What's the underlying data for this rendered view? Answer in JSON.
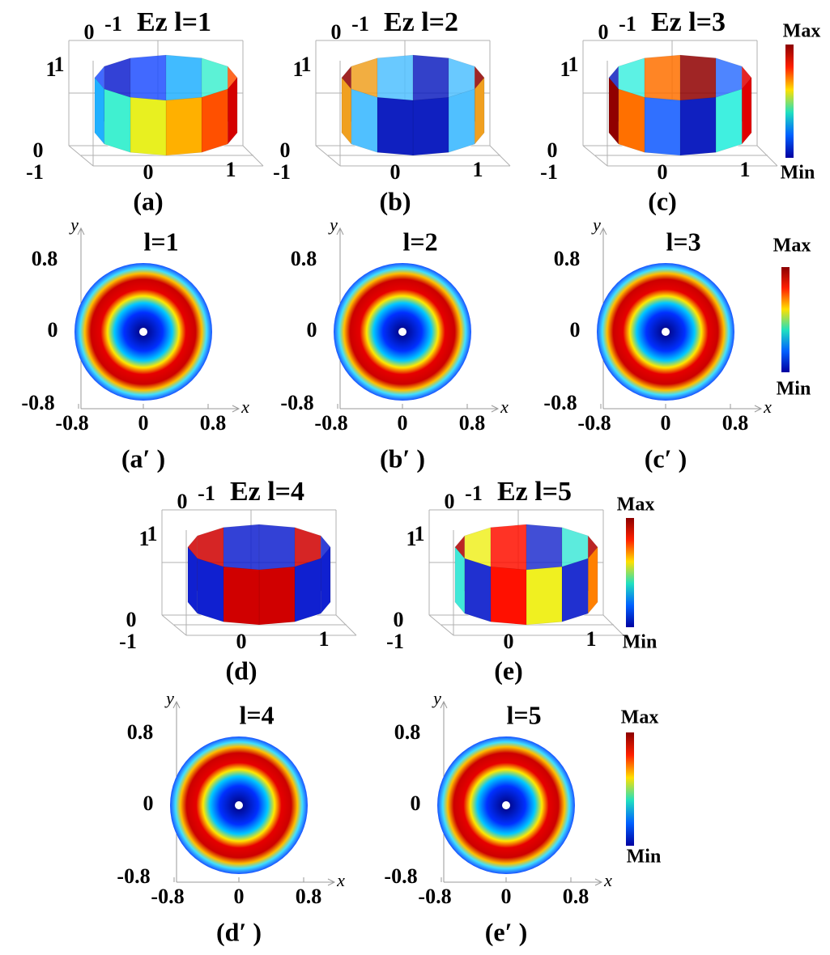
{
  "panels_3d": [
    {
      "title": "Ez  l=1",
      "label": "(a)",
      "x_ticks": [
        "-1",
        "0",
        "1"
      ],
      "y_ticks": [
        "0",
        "-1"
      ],
      "z_ticks": [
        "1",
        "1",
        "0"
      ]
    },
    {
      "title": "Ez  l=2",
      "label": "(b)",
      "x_ticks": [
        "-1",
        "0",
        "1"
      ],
      "y_ticks": [
        "0",
        "-1"
      ],
      "z_ticks": [
        "1",
        "1",
        "0"
      ]
    },
    {
      "title": "Ez  l=3",
      "label": "(c)",
      "x_ticks": [
        "-1",
        "0",
        "1"
      ],
      "y_ticks": [
        "0",
        "-1"
      ],
      "z_ticks": [
        "1",
        "1",
        "0"
      ]
    },
    {
      "title": "Ez  l=4",
      "label": "(d)",
      "x_ticks": [
        "-1",
        "0",
        "1"
      ],
      "y_ticks": [
        "0",
        "-1"
      ],
      "z_ticks": [
        "1",
        "1",
        "0"
      ]
    },
    {
      "title": "Ez  l=5",
      "label": "(e)",
      "x_ticks": [
        "-1",
        "0",
        "1"
      ],
      "y_ticks": [
        "0",
        "-1"
      ],
      "z_ticks": [
        "1",
        "1",
        "0"
      ]
    }
  ],
  "panels_2d": [
    {
      "title": "l=1",
      "label": "(a′ )",
      "x_ticks": [
        "-0.8",
        "0",
        "0.8"
      ],
      "y_ticks": [
        "0.8",
        "0",
        "-0.8"
      ],
      "x_axis": "x",
      "y_axis": "y"
    },
    {
      "title": "l=2",
      "label": "(b′ )",
      "x_ticks": [
        "-0.8",
        "0",
        "0.8"
      ],
      "y_ticks": [
        "0.8",
        "0",
        "-0.8"
      ],
      "x_axis": "x",
      "y_axis": "y"
    },
    {
      "title": "l=3",
      "label": "(c′ )",
      "x_ticks": [
        "-0.8",
        "0",
        "0.8"
      ],
      "y_ticks": [
        "0.8",
        "0",
        "-0.8"
      ],
      "x_axis": "x",
      "y_axis": "y"
    },
    {
      "title": "l=4",
      "label": "(d′ )",
      "x_ticks": [
        "-0.8",
        "0",
        "0.8"
      ],
      "y_ticks": [
        "0.8",
        "0",
        "-0.8"
      ],
      "x_axis": "x",
      "y_axis": "y"
    },
    {
      "title": "l=5",
      "label": "(e′ )",
      "x_ticks": [
        "-0.8",
        "0",
        "0.8"
      ],
      "y_ticks": [
        "0.8",
        "0",
        "-0.8"
      ],
      "x_axis": "x",
      "y_axis": "y"
    }
  ],
  "colorbars": [
    {
      "max": "Max",
      "min": "Min"
    },
    {
      "max": "Max",
      "min": "Min"
    },
    {
      "max": "Max",
      "min": "Min"
    },
    {
      "max": "Max",
      "min": "Min"
    }
  ]
}
